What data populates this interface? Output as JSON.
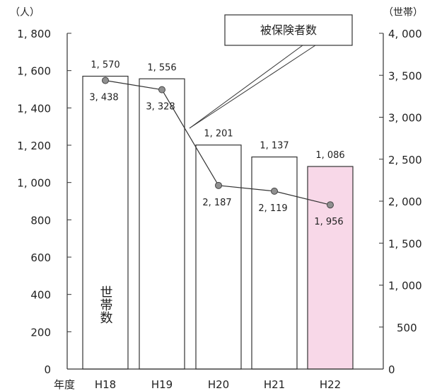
{
  "chart_data": {
    "type": "bar",
    "categories": [
      "H18",
      "H19",
      "H20",
      "H21",
      "H22"
    ],
    "x_prefix": "年度",
    "series": [
      {
        "name": "世帯数",
        "type": "bar",
        "axis": "left",
        "values": [
          1570,
          1556,
          1201,
          1137,
          1086
        ],
        "labels": [
          "1, 570",
          "1, 556",
          "1, 201",
          "1, 137",
          "1, 086"
        ]
      },
      {
        "name": "被保険者数",
        "type": "line",
        "axis": "right",
        "values": [
          3438,
          3328,
          2187,
          2119,
          1956
        ],
        "labels": [
          "3, 438",
          "3, 328",
          "2, 187",
          "2, 119",
          "1, 956"
        ]
      }
    ],
    "y_left": {
      "unit": "（人）",
      "range": [
        0,
        1800
      ],
      "ticks": [
        0,
        200,
        400,
        600,
        800,
        1000,
        1200,
        1400,
        1600,
        1800
      ],
      "tick_labels": [
        "0",
        "200",
        "400",
        "600",
        "800",
        "1, 000",
        "1, 200",
        "1, 400",
        "1, 600",
        "1, 800"
      ]
    },
    "y_right": {
      "unit": "（世帯）",
      "range": [
        0,
        4000
      ],
      "ticks": [
        0,
        500,
        1000,
        1500,
        2000,
        2500,
        3000,
        3500,
        4000
      ],
      "tick_labels": [
        "0",
        "500",
        "1, 000",
        "1, 500",
        "2, 000",
        "2, 500",
        "3, 000",
        "3, 500",
        "4, 000"
      ]
    },
    "bar_inner_label": "世帯数",
    "callout": "被保険者数",
    "grid": false,
    "colors": {
      "bar_fill": "#ffffff",
      "highlight_fill": "#f8d8e8",
      "stroke": "#333333",
      "marker": "#909090"
    },
    "highlight_index": 4
  }
}
